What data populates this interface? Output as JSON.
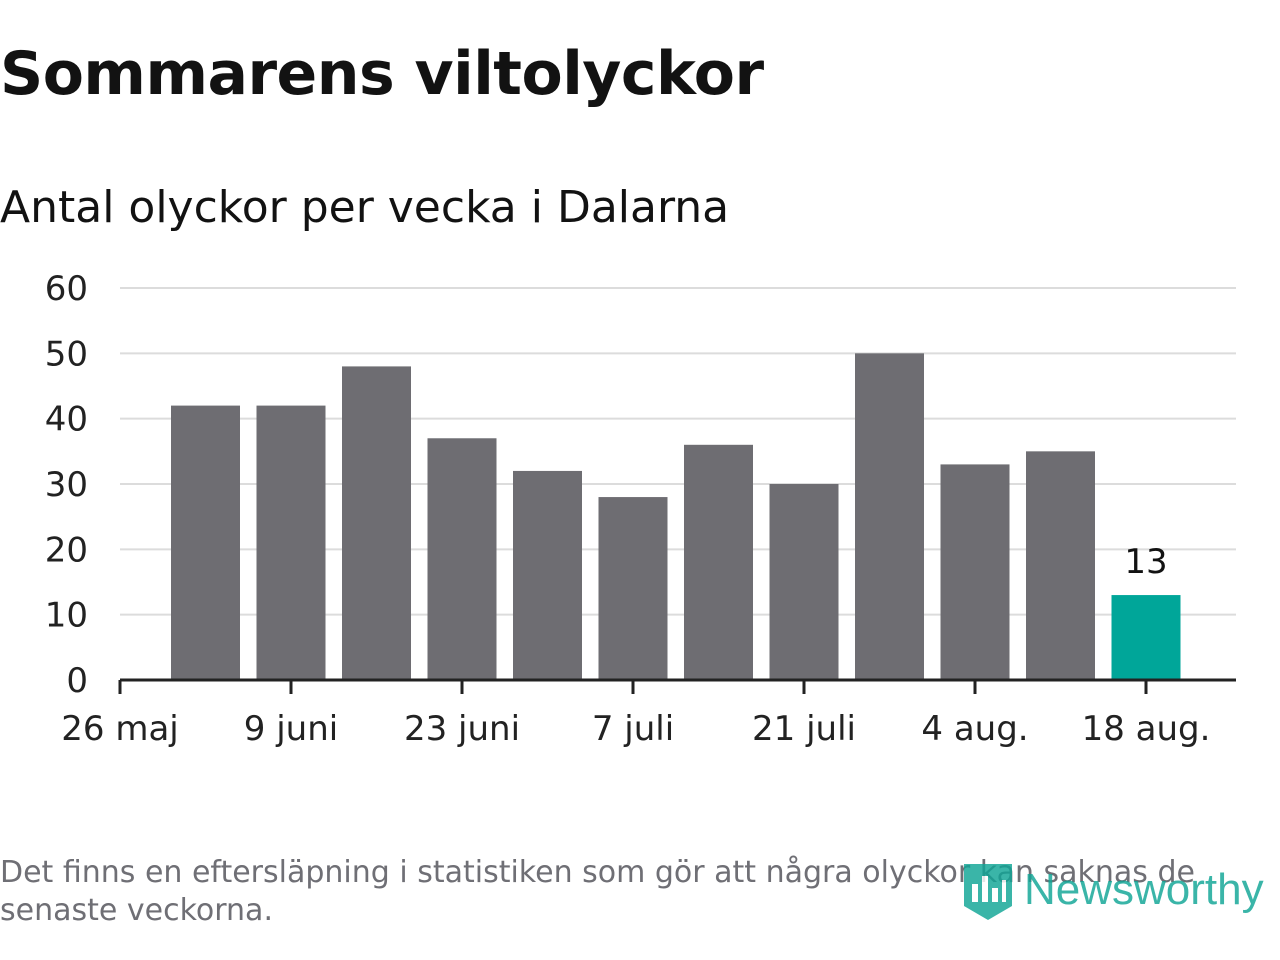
{
  "title": "Sommarens viltolyckor",
  "subtitle": "Antal olyckor per vecka i Dalarna",
  "footnote": "Det finns en eftersläpning i statistiken som gör att några olyckor kan saknas de senaste veckorna.",
  "logo": {
    "text": "Newsworthy",
    "icon": "bar-chart-shield-icon",
    "color": "#10a596"
  },
  "colors": {
    "bar": "#6e6d72",
    "highlight": "#00a699",
    "grid": "#dcdcdc",
    "axis": "#222222"
  },
  "chart_data": {
    "type": "bar",
    "x": [
      "2024-05-26",
      "2024-06-02",
      "2024-06-09",
      "2024-06-16",
      "2024-06-23",
      "2024-06-30",
      "2024-07-07",
      "2024-07-14",
      "2024-07-21",
      "2024-07-28",
      "2024-08-04",
      "2024-08-11",
      "2024-08-18"
    ],
    "values": [
      null,
      42,
      42,
      48,
      37,
      32,
      28,
      36,
      30,
      50,
      33,
      35,
      13
    ],
    "highlight_index": 12,
    "data_labels": [
      {
        "index": 12,
        "text": "13"
      }
    ],
    "x_tick_labels": [
      {
        "index": 0,
        "text": "26 maj"
      },
      {
        "index": 2,
        "text": "9 juni"
      },
      {
        "index": 4,
        "text": "23 juni"
      },
      {
        "index": 6,
        "text": "7 juli"
      },
      {
        "index": 8,
        "text": "21 juli"
      },
      {
        "index": 10,
        "text": "4 aug."
      },
      {
        "index": 12,
        "text": "18 aug."
      }
    ],
    "y_ticks": [
      0,
      10,
      20,
      30,
      40,
      50,
      60
    ],
    "ylim": [
      0,
      60
    ],
    "grid": true,
    "legend": "none"
  }
}
